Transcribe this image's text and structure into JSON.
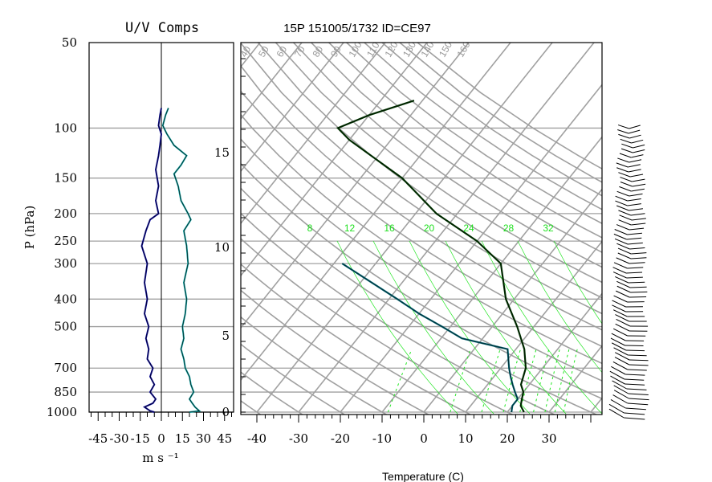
{
  "uv_panel": {
    "title": "U/V Comps",
    "ylabel": "P (hPa)",
    "xlabel": "m s ⁻¹",
    "pressure_ticks": [
      "50",
      "100",
      "150",
      "200",
      "250",
      "300",
      "400",
      "500",
      "700",
      "850",
      "1000"
    ],
    "speed_ticks": [
      "-45",
      "-30",
      "-15",
      "0",
      "15",
      "30",
      "45"
    ]
  },
  "skewt_panel": {
    "title": "15P 151005/1732 ID=CE97",
    "xlabel": "Temperature (C)",
    "temp_ticks": [
      "-40",
      "-30",
      "-20",
      "-10",
      "0",
      "10",
      "20",
      "30"
    ],
    "height_ticks": [
      "0",
      "5",
      "10",
      "15"
    ],
    "theta_labels": [
      "40",
      "50",
      "60",
      "70",
      "80",
      "90",
      "100",
      "110",
      "120",
      "130",
      "140",
      "150",
      "160"
    ],
    "mixing_ratio_labels": [
      "8",
      "12",
      "16",
      "20",
      "24",
      "28",
      "32"
    ],
    "colors": {
      "grid": "#a0a0a0",
      "temp": "#003600",
      "dewpoint": "#00606e",
      "mixing": "#22e622",
      "uv_u": "#1010a0",
      "uv_v": "#10a0a0"
    }
  },
  "chart_data": [
    {
      "type": "line",
      "title": "U/V Comps",
      "xlabel": "m s ⁻¹",
      "ylabel": "P (hPa)",
      "xlim": [
        -50,
        50
      ],
      "ylim": [
        1000,
        50
      ],
      "series": [
        {
          "values": [
            [
              -5,
              1000
            ],
            [
              -8,
              990
            ],
            [
              -12,
              960
            ],
            [
              -6,
              930
            ],
            [
              -4,
              900
            ],
            [
              -8,
              850
            ],
            [
              -5,
              800
            ],
            [
              -8,
              750
            ],
            [
              -6,
              700
            ],
            [
              -10,
              650
            ],
            [
              -9,
              600
            ],
            [
              -11,
              550
            ],
            [
              -9,
              500
            ],
            [
              -12,
              450
            ],
            [
              -10,
              400
            ],
            [
              -12,
              350
            ],
            [
              -10,
              300
            ],
            [
              -14,
              260
            ],
            [
              -11,
              230
            ],
            [
              -8,
              210
            ],
            [
              -2,
              200
            ],
            [
              -4,
              180
            ],
            [
              -2,
              160
            ],
            [
              -4,
              140
            ],
            [
              -2,
              125
            ],
            [
              -1,
              115
            ],
            [
              0,
              105
            ],
            [
              -2,
              98
            ],
            [
              -1,
              90
            ],
            [
              0,
              85
            ]
          ]
        },
        {
          "values": [
            [
              20,
              1000
            ],
            [
              27,
              990
            ],
            [
              24,
              960
            ],
            [
              22,
              930
            ],
            [
              20,
              900
            ],
            [
              23,
              850
            ],
            [
              21,
              800
            ],
            [
              20,
              750
            ],
            [
              17,
              700
            ],
            [
              16,
              650
            ],
            [
              14,
              600
            ],
            [
              16,
              550
            ],
            [
              15,
              500
            ],
            [
              17,
              450
            ],
            [
              18,
              400
            ],
            [
              16,
              350
            ],
            [
              19,
              300
            ],
            [
              18,
              260
            ],
            [
              16,
              230
            ],
            [
              21,
              210
            ],
            [
              19,
              200
            ],
            [
              14,
              180
            ],
            [
              12,
              160
            ],
            [
              9,
              145
            ],
            [
              14,
              135
            ],
            [
              18,
              125
            ],
            [
              9,
              115
            ],
            [
              4,
              105
            ],
            [
              1,
              98
            ],
            [
              3,
              90
            ],
            [
              5,
              85
            ]
          ]
        }
      ]
    },
    {
      "type": "line",
      "title": "15P 151005/1732 ID=CE97",
      "xlabel": "Temperature (C)",
      "xlim": [
        -40,
        40
      ],
      "ylim": [
        1000,
        50
      ],
      "series": [
        {
          "values": [
            [
              24,
              1000
            ],
            [
              22,
              950
            ],
            [
              21,
              900
            ],
            [
              20,
              850
            ],
            [
              18,
              800
            ],
            [
              16,
              700
            ],
            [
              12,
              600
            ],
            [
              6,
              500
            ],
            [
              -2,
              400
            ],
            [
              -10,
              300
            ],
            [
              -20,
              250
            ],
            [
              -35,
              200
            ],
            [
              -50,
              150
            ],
            [
              -70,
              110
            ],
            [
              -75,
              100
            ],
            [
              -70,
              90
            ],
            [
              -62,
              80
            ]
          ]
        },
        {
          "values": [
            [
              21,
              1000
            ],
            [
              20,
              950
            ],
            [
              20,
              900
            ],
            [
              18,
              850
            ],
            [
              16,
              800
            ],
            [
              14,
              750
            ],
            [
              12,
              700
            ],
            [
              8,
              600
            ],
            [
              -5,
              550
            ],
            [
              -12,
              500
            ],
            [
              -20,
              450
            ],
            [
              -28,
              400
            ],
            [
              -48,
              300
            ]
          ]
        }
      ]
    }
  ]
}
